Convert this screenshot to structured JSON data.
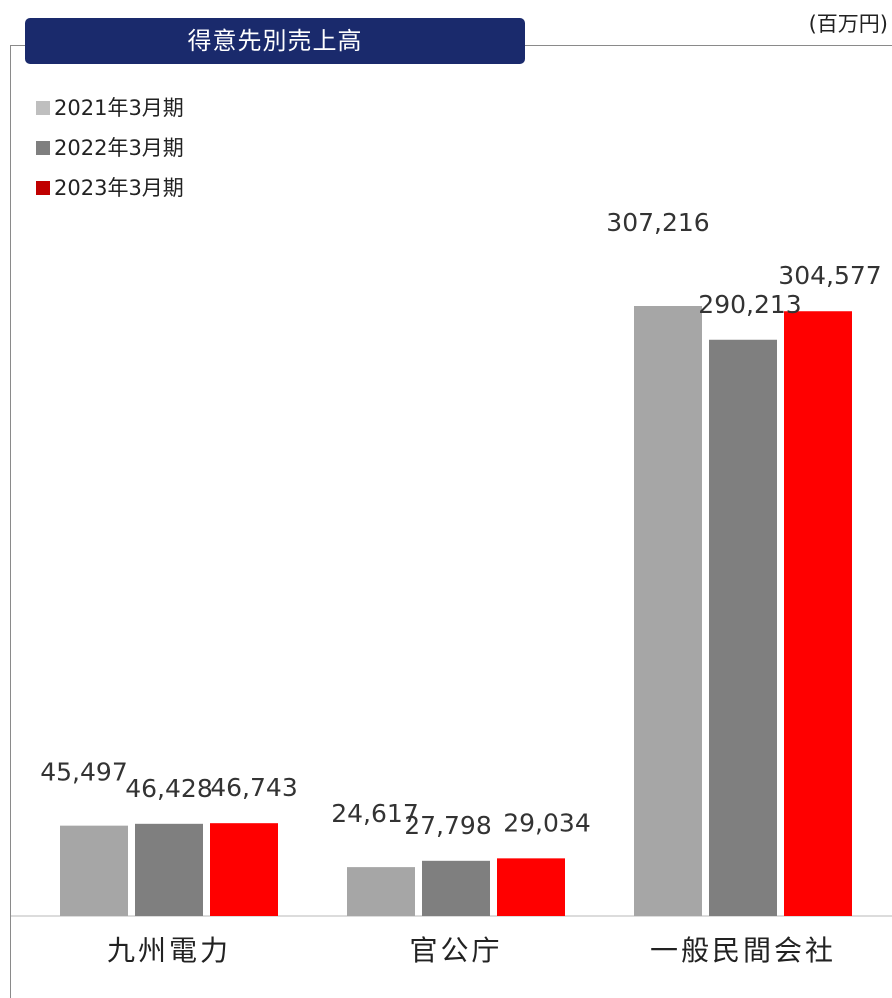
{
  "title": "得意先別売上高",
  "unit": "(百万円)",
  "chart_data": {
    "type": "bar",
    "title": "得意先別売上高",
    "unit": "(百万円)",
    "categories": [
      "九州電力",
      "官公庁",
      "一般民間会社"
    ],
    "series": [
      {
        "name": "2021年3月期",
        "color": "#a6a6a6",
        "legend_color": "#bfbfbf",
        "values": [
          45497,
          24617,
          307216
        ]
      },
      {
        "name": "2022年3月期",
        "color": "#7f7f7f",
        "legend_color": "#7f7f7f",
        "values": [
          46428,
          27798,
          290213
        ]
      },
      {
        "name": "2023年3月期",
        "color": "#ff0000",
        "legend_color": "#c00000",
        "values": [
          46743,
          29034,
          304577
        ]
      }
    ],
    "value_labels": [
      [
        "45,497",
        "24,617",
        "307,216"
      ],
      [
        "46,428",
        "27,798",
        "290,213"
      ],
      [
        "46,743",
        "29,034",
        "304,577"
      ]
    ],
    "ylim": [
      0,
      400000
    ],
    "legend": "top-left",
    "grid": false
  }
}
